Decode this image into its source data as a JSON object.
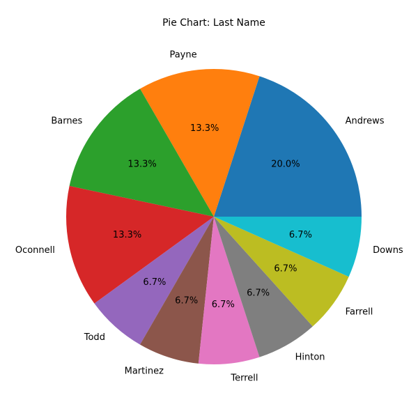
{
  "chart_data": {
    "type": "pie",
    "title": "Pie Chart: Last Name",
    "labels": [
      "Andrews",
      "Payne",
      "Barnes",
      "Oconnell",
      "Todd",
      "Martinez",
      "Terrell",
      "Hinton",
      "Farrell",
      "Downs"
    ],
    "values": [
      3,
      2,
      2,
      2,
      1,
      1,
      1,
      1,
      1,
      1
    ],
    "percent_labels": [
      "20.0%",
      "13.3%",
      "13.3%",
      "13.3%",
      "6.7%",
      "6.7%",
      "6.7%",
      "6.7%",
      "6.7%",
      "6.7%"
    ],
    "colors": [
      "#1f77b4",
      "#ff7f0e",
      "#2ca02c",
      "#d62728",
      "#9467bd",
      "#8c564b",
      "#e377c2",
      "#7f7f7f",
      "#bcbd22",
      "#17becf"
    ],
    "start_angle_deg": 0,
    "direction": "counterclockwise"
  }
}
